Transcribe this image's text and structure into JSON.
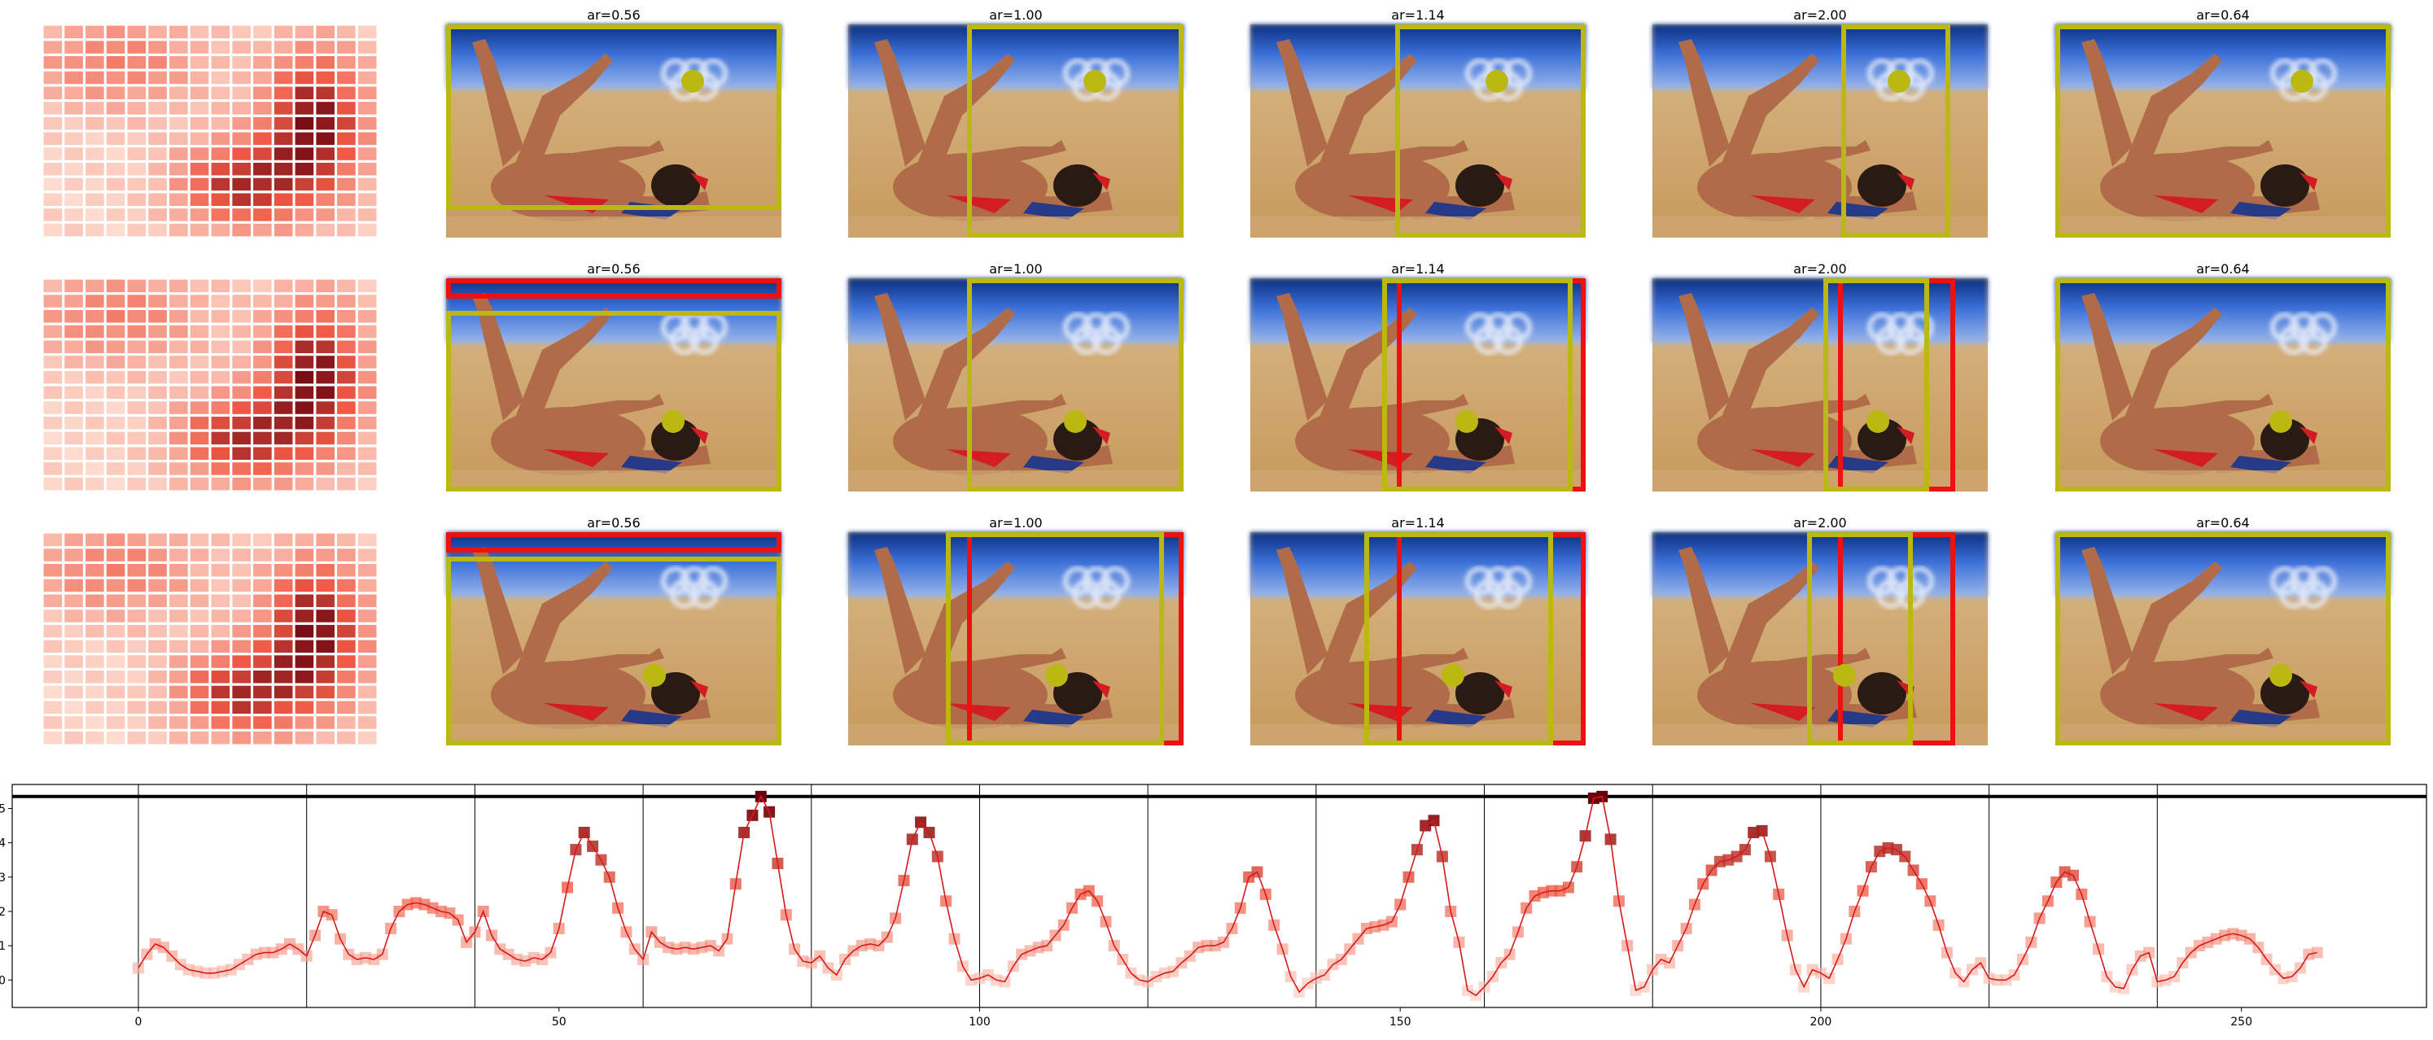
{
  "colors": {
    "crop_box": "#bcb812",
    "prev_box": "#ee1111",
    "center_dot": "#bcb812",
    "heat_low": "#fee5d9",
    "heat_high": "#67000d",
    "curve": "#d7191c"
  },
  "panels": {
    "rows": 3,
    "titles": [
      "",
      "ar=0.56",
      "ar=1.00",
      "ar=1.14",
      "ar=2.00",
      "ar=0.64"
    ]
  },
  "chart_data": {
    "type": "line",
    "title": "",
    "xlabel": "",
    "ylabel": "",
    "xlim": [
      -15,
      272
    ],
    "ylim": [
      -0.8,
      5.7
    ],
    "xticks": [
      0,
      50,
      100,
      150,
      200,
      250
    ],
    "yticks": [
      0,
      1,
      2,
      3,
      4,
      5
    ],
    "threshold_line": 5.35,
    "segment_boundaries": [
      0,
      20,
      40,
      60,
      80,
      100,
      120,
      140,
      160,
      180,
      200,
      220,
      240
    ],
    "x_start": 0,
    "values": [
      0.35,
      0.75,
      1.05,
      0.95,
      0.7,
      0.45,
      0.3,
      0.25,
      0.2,
      0.2,
      0.25,
      0.3,
      0.45,
      0.6,
      0.75,
      0.8,
      0.8,
      0.9,
      1.05,
      0.9,
      0.7,
      1.3,
      2.0,
      1.9,
      1.2,
      0.75,
      0.6,
      0.65,
      0.6,
      0.75,
      1.5,
      2.0,
      2.2,
      2.25,
      2.2,
      2.1,
      2.0,
      1.95,
      1.75,
      1.1,
      1.4,
      2.0,
      1.3,
      0.9,
      0.75,
      0.6,
      0.55,
      0.65,
      0.6,
      0.8,
      1.5,
      2.7,
      3.8,
      4.3,
      3.9,
      3.5,
      3.0,
      2.1,
      1.4,
      0.9,
      0.6,
      1.4,
      1.1,
      0.95,
      0.9,
      0.95,
      0.9,
      0.95,
      1.0,
      0.85,
      1.2,
      2.8,
      4.3,
      4.8,
      5.35,
      4.9,
      3.4,
      1.9,
      0.9,
      0.55,
      0.5,
      0.7,
      0.35,
      0.15,
      0.6,
      0.85,
      1.0,
      1.05,
      1.0,
      1.25,
      1.8,
      2.9,
      4.1,
      4.6,
      4.3,
      3.6,
      2.3,
      1.2,
      0.4,
      0.0,
      0.05,
      0.15,
      0.0,
      -0.05,
      0.4,
      0.75,
      0.85,
      0.95,
      1.0,
      1.3,
      1.6,
      2.1,
      2.5,
      2.6,
      2.3,
      1.7,
      1.0,
      0.6,
      0.2,
      0.0,
      -0.05,
      0.1,
      0.2,
      0.25,
      0.5,
      0.7,
      0.95,
      1.0,
      1.0,
      1.1,
      1.5,
      2.1,
      3.0,
      3.15,
      2.5,
      1.6,
      0.9,
      0.1,
      -0.35,
      -0.1,
      0.05,
      0.15,
      0.45,
      0.6,
      0.9,
      1.2,
      1.5,
      1.55,
      1.6,
      1.7,
      2.2,
      3.0,
      3.8,
      4.5,
      4.65,
      3.6,
      2.0,
      1.1,
      -0.3,
      -0.45,
      -0.2,
      0.1,
      0.5,
      0.75,
      1.4,
      2.1,
      2.45,
      2.55,
      2.6,
      2.6,
      2.7,
      3.3,
      4.2,
      5.3,
      5.35,
      4.1,
      2.3,
      1.0,
      -0.3,
      -0.2,
      0.3,
      0.6,
      0.5,
      1.0,
      1.5,
      2.2,
      2.8,
      3.2,
      3.45,
      3.5,
      3.6,
      3.8,
      4.3,
      4.35,
      3.6,
      2.5,
      1.3,
      0.3,
      -0.2,
      0.3,
      0.2,
      0.05,
      0.6,
      1.2,
      2.0,
      2.6,
      3.3,
      3.75,
      3.85,
      3.8,
      3.6,
      3.2,
      2.8,
      2.3,
      1.6,
      0.8,
      0.2,
      -0.05,
      0.3,
      0.5,
      0.05,
      0.0,
      0.0,
      0.15,
      0.6,
      1.1,
      1.8,
      2.3,
      2.85,
      3.15,
      3.05,
      2.5,
      1.7,
      0.9,
      0.1,
      -0.2,
      -0.25,
      0.3,
      0.7,
      0.8,
      -0.05,
      0.0,
      0.1,
      0.5,
      0.8,
      1.0,
      1.1,
      1.2,
      1.3,
      1.35,
      1.3,
      1.2,
      0.95,
      0.6,
      0.3,
      0.05,
      0.1,
      0.35,
      0.75,
      0.8
    ],
    "grid": false,
    "legend": "none"
  }
}
